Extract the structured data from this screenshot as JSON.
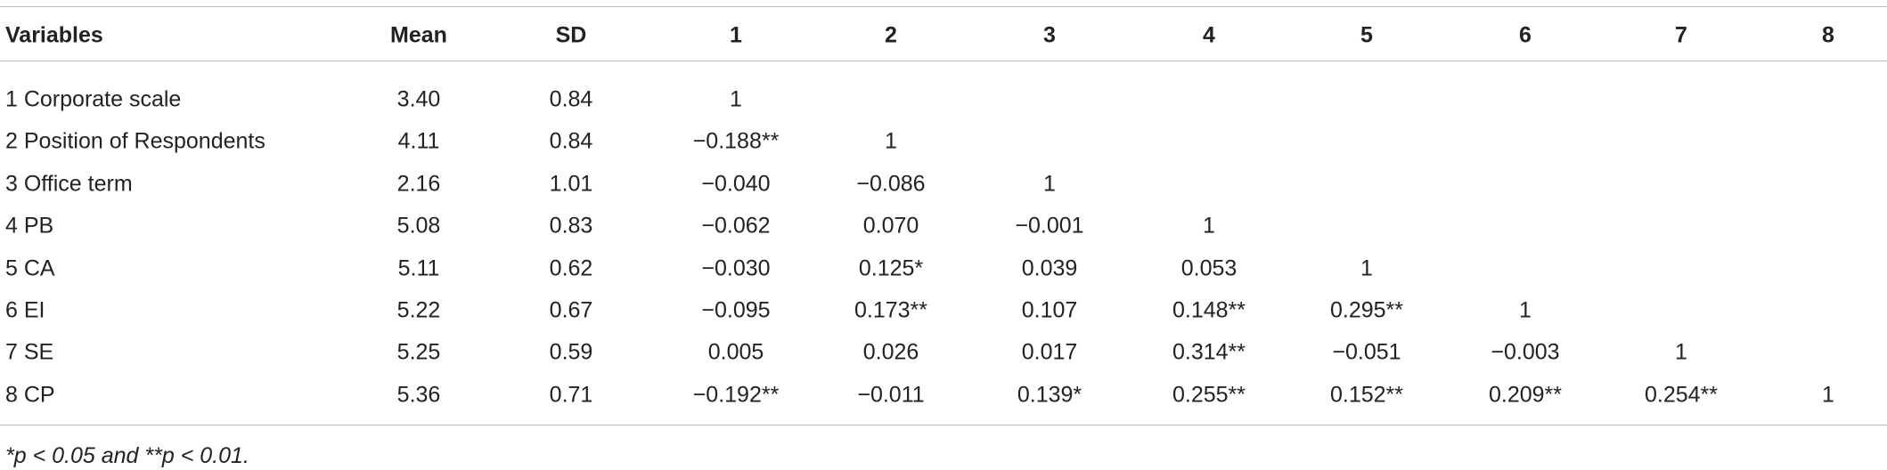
{
  "table": {
    "header": [
      "Variables",
      "Mean",
      "SD",
      "1",
      "2",
      "3",
      "4",
      "5",
      "6",
      "7",
      "8"
    ],
    "rows": [
      [
        "1 Corporate scale",
        "3.40",
        "0.84",
        "1"
      ],
      [
        "2 Position of Respondents",
        "4.11",
        "0.84",
        "−0.188**",
        "1"
      ],
      [
        "3 Office term",
        "2.16",
        "1.01",
        "−0.040",
        "−0.086",
        "1"
      ],
      [
        "4 PB",
        "5.08",
        "0.83",
        "−0.062",
        "0.070",
        "−0.001",
        "1"
      ],
      [
        "5 CA",
        "5.11",
        "0.62",
        "−0.030",
        "0.125*",
        "0.039",
        "0.053",
        "1"
      ],
      [
        "6 EI",
        "5.22",
        "0.67",
        "−0.095",
        "0.173**",
        "0.107",
        "0.148**",
        "0.295**",
        "1"
      ],
      [
        "7 SE",
        "5.25",
        "0.59",
        "0.005",
        "0.026",
        "0.017",
        "0.314**",
        "−0.051",
        "−0.003",
        "1"
      ],
      [
        "8 CP",
        "5.36",
        "0.71",
        "−0.192**",
        "−0.011",
        "0.139*",
        "0.255**",
        "0.152**",
        "0.209**",
        "0.254**",
        "1"
      ]
    ],
    "footnote": "*p < 0.05 and **p < 0.01."
  }
}
